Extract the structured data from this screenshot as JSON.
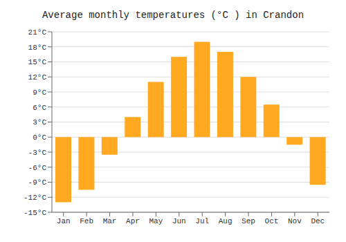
{
  "chart_data": {
    "type": "bar",
    "title": "Average monthly temperatures (°C ) in Crandon",
    "categories": [
      "Jan",
      "Feb",
      "Mar",
      "Apr",
      "May",
      "Jun",
      "Jul",
      "Aug",
      "Sep",
      "Oct",
      "Nov",
      "Dec"
    ],
    "values": [
      -13,
      -10.5,
      -3.5,
      4,
      11,
      16,
      19,
      17,
      12,
      6.5,
      -1.5,
      -9.5
    ],
    "color": "#FFA820",
    "ylim": [
      -15,
      21
    ],
    "yticks": [
      {
        "value": -15,
        "label": "-15°C"
      },
      {
        "value": -12,
        "label": "-12°C"
      },
      {
        "value": -9,
        "label": "-9°C"
      },
      {
        "value": -6,
        "label": "-6°C"
      },
      {
        "value": -3,
        "label": "-3°C"
      },
      {
        "value": 0,
        "label": "0°C"
      },
      {
        "value": 3,
        "label": "3°C"
      },
      {
        "value": 6,
        "label": "6°C"
      },
      {
        "value": 9,
        "label": "9°C"
      },
      {
        "value": 12,
        "label": "12°C"
      },
      {
        "value": 15,
        "label": "15°C"
      },
      {
        "value": 18,
        "label": "18°C"
      },
      {
        "value": 21,
        "label": "21°C"
      }
    ],
    "grid": true
  }
}
